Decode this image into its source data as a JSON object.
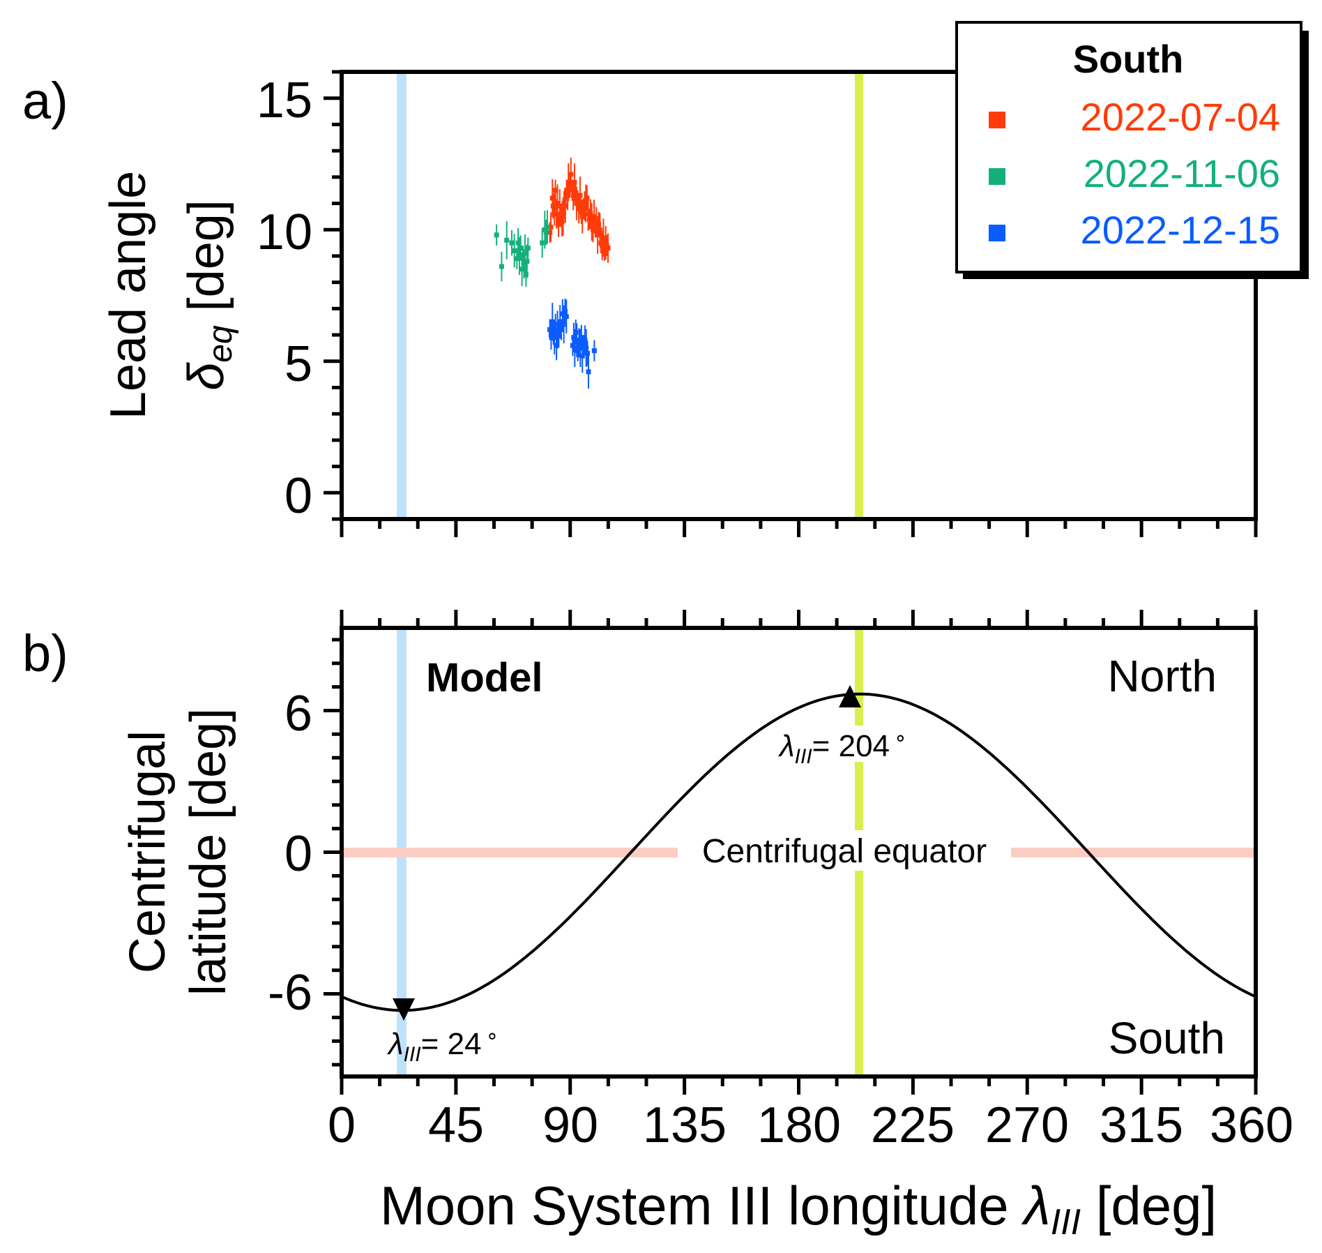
{
  "chart_data": [
    {
      "panel_label": "a)",
      "type": "scatter",
      "ylabel_line1": "Lead angle",
      "ylabel_symbol": "δ",
      "ylabel_symbol_sub": "eq",
      "ylabel_unit": " [deg]",
      "xlim": [
        0,
        360
      ],
      "ylim": [
        -1,
        16
      ],
      "xticks": [
        0,
        45,
        90,
        135,
        180,
        225,
        270,
        315,
        360
      ],
      "yticks": [
        0,
        5,
        10,
        15
      ],
      "ytick_labels": [
        "0",
        "5",
        "10",
        "15"
      ],
      "vertical_bands": [
        {
          "x": 24,
          "color": "#bfe2fb"
        },
        {
          "x": 204,
          "color": "#d9ef4f"
        }
      ],
      "legend": {
        "title": "South",
        "position": "top-right"
      },
      "series": [
        {
          "name": "2022-07-04",
          "color": "#ff3b0a",
          "points": [
            [
              82,
              9.9
            ],
            [
              82.4,
              10.1
            ],
            [
              83,
              11.2
            ],
            [
              83.3,
              10.9
            ],
            [
              83.8,
              10.8
            ],
            [
              84.2,
              11.5
            ],
            [
              84.6,
              10.6
            ],
            [
              85,
              11.0
            ],
            [
              85.4,
              10.2
            ],
            [
              85.9,
              10.9
            ],
            [
              86.3,
              10.5
            ],
            [
              86.8,
              10.3
            ],
            [
              87.2,
              10.5
            ],
            [
              87.6,
              11.0
            ],
            [
              88.1,
              10.9
            ],
            [
              88.6,
              11.5
            ],
            [
              89,
              11.3
            ],
            [
              89.3,
              11.8
            ],
            [
              89.8,
              11.7
            ],
            [
              90.3,
              12.1
            ],
            [
              90.8,
              11.5
            ],
            [
              91.2,
              11.3
            ],
            [
              91.7,
              11.8
            ],
            [
              92.1,
              11.4
            ],
            [
              92.5,
              11.0
            ],
            [
              93,
              11.1
            ],
            [
              93.4,
              10.8
            ],
            [
              93.9,
              11.3
            ],
            [
              94.4,
              10.7
            ],
            [
              94.8,
              10.5
            ],
            [
              95.3,
              10.8
            ],
            [
              95.7,
              10.9
            ],
            [
              96.2,
              11.0
            ],
            [
              96.6,
              11.2
            ],
            [
              97.1,
              10.6
            ],
            [
              97.6,
              10.4
            ],
            [
              98,
              10.6
            ],
            [
              98.5,
              10.3
            ],
            [
              99,
              10.0
            ],
            [
              99.4,
              10.5
            ],
            [
              99.9,
              10.1
            ],
            [
              100.3,
              10.3
            ],
            [
              100.8,
              9.8
            ],
            [
              101.2,
              10.2
            ],
            [
              101.7,
              10.0
            ],
            [
              102.1,
              9.5
            ],
            [
              102.6,
              9.4
            ],
            [
              103.1,
              9.7
            ],
            [
              103.5,
              9.3
            ],
            [
              104,
              9.5
            ],
            [
              104.4,
              9.4
            ],
            [
              104.9,
              9.3
            ]
          ]
        },
        {
          "name": "2022-11-06",
          "color": "#14b07a",
          "points": [
            [
              61,
              9.8
            ],
            [
              63,
              8.6
            ],
            [
              65,
              9.6
            ],
            [
              67,
              9.5
            ],
            [
              68,
              9.2
            ],
            [
              69,
              8.9
            ],
            [
              69.5,
              9.5
            ],
            [
              70,
              9.0
            ],
            [
              70.5,
              9.3
            ],
            [
              71,
              8.5
            ],
            [
              71.4,
              9.0
            ],
            [
              71.8,
              8.7
            ],
            [
              72.2,
              9.1
            ],
            [
              72.6,
              8.3
            ],
            [
              73,
              8.8
            ],
            [
              73.4,
              9.3
            ],
            [
              79,
              9.5
            ],
            [
              80,
              10.0
            ],
            [
              80.5,
              9.9
            ],
            [
              81,
              10.1
            ]
          ]
        },
        {
          "name": "2022-12-15",
          "color": "#0a5cff",
          "points": [
            [
              82,
              6.2
            ],
            [
              82.5,
              6.0
            ],
            [
              83,
              6.5
            ],
            [
              83.4,
              6.1
            ],
            [
              83.8,
              5.9
            ],
            [
              84.2,
              6.4
            ],
            [
              84.6,
              5.6
            ],
            [
              85,
              6.2
            ],
            [
              85.5,
              6.0
            ],
            [
              86,
              6.5
            ],
            [
              86.5,
              6.2
            ],
            [
              87,
              6.8
            ],
            [
              87.5,
              6.4
            ],
            [
              88,
              6.9
            ],
            [
              88.5,
              6.7
            ],
            [
              91,
              5.6
            ],
            [
              91.4,
              5.9
            ],
            [
              91.8,
              5.5
            ],
            [
              92.2,
              6.1
            ],
            [
              92.6,
              5.8
            ],
            [
              93,
              5.4
            ],
            [
              93.5,
              5.7
            ],
            [
              94,
              5.5
            ],
            [
              94.4,
              5.9
            ],
            [
              94.8,
              5.2
            ],
            [
              95.3,
              5.6
            ],
            [
              95.8,
              5.8
            ],
            [
              96.3,
              5.5
            ],
            [
              96.8,
              5.3
            ],
            [
              97.2,
              4.6
            ],
            [
              99.5,
              5.4
            ]
          ]
        }
      ]
    },
    {
      "panel_label": "b)",
      "type": "line",
      "ylabel_line1": "Centrifugal",
      "ylabel_line2": "latitude [deg]",
      "xlabel_main": "Moon System III longitude ",
      "xlabel_symbol": "λ",
      "xlabel_symbol_sub": "III",
      "xlabel_unit": " [deg]",
      "xlim": [
        0,
        360
      ],
      "ylim": [
        -9.5,
        9.5
      ],
      "xticks": [
        0,
        45,
        90,
        135,
        180,
        225,
        270,
        315,
        360
      ],
      "xtick_labels": [
        "0",
        "45",
        "90",
        "135",
        "180",
        "225",
        "270",
        "315",
        "360"
      ],
      "yticks": [
        -6,
        0,
        6
      ],
      "ytick_labels": [
        "-6",
        "0",
        "6"
      ],
      "model": {
        "amplitude": 6.7,
        "phase_deg": 204,
        "color": "#000000"
      },
      "vertical_bands": [
        {
          "x": 24,
          "color": "#bfe2fb"
        },
        {
          "x": 204,
          "color": "#d9ef4f"
        }
      ],
      "horizontal_band": {
        "y": 0,
        "color": "#fbcdc3",
        "label": "Centrifugal equator"
      },
      "markers": [
        {
          "x": 204,
          "y": 6.7,
          "shape": "triangle-up",
          "label_symbol": "λ",
          "label_sub": "III",
          "label_value": "= 204",
          "label_degree": "∘"
        },
        {
          "x": 24,
          "y": -6.7,
          "shape": "triangle-down",
          "label_symbol": "λ",
          "label_sub": "III",
          "label_value": "= 24",
          "label_degree": "∘"
        }
      ],
      "text_labels": {
        "model": "Model",
        "north": "North",
        "south": "South"
      }
    }
  ]
}
